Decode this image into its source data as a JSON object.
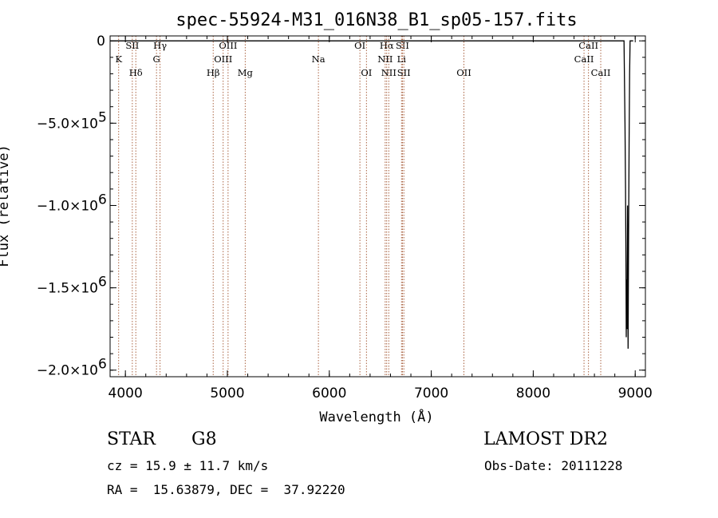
{
  "chart_data": {
    "type": "line",
    "title": "spec-55924-M31_016N38_B1_sp05-157.fits",
    "xlabel": "Wavelength (Å)",
    "ylabel": "Flux (relative)",
    "xlim": [
      3850,
      9100
    ],
    "ylim": [
      -2040000,
      30000
    ],
    "x_ticks": [
      4000,
      5000,
      6000,
      7000,
      8000,
      9000
    ],
    "x_tick_labels": [
      "4000",
      "5000",
      "6000",
      "7000",
      "8000",
      "9000"
    ],
    "y_ticks": [
      0,
      -500000,
      -1000000,
      -1500000,
      -2000000
    ],
    "y_tick_labels": [
      {
        "mantissa": "0",
        "exp": ""
      },
      {
        "mantissa": "−5.0×10",
        "exp": "5"
      },
      {
        "mantissa": "−1.0×10",
        "exp": "6"
      },
      {
        "mantissa": "−1.5×10",
        "exp": "6"
      },
      {
        "mantissa": "−2.0×10",
        "exp": "6"
      }
    ],
    "series": [
      {
        "x": [
          3850,
          8880,
          8890,
          8900,
          8905,
          8910,
          8912,
          8915,
          8920,
          8925,
          8930,
          8935,
          8940,
          8945,
          8950,
          8955,
          8960,
          8970,
          8980
        ],
        "y": [
          0,
          0,
          0,
          -500000,
          -900000,
          -1400000,
          -1800000,
          -1450000,
          -1750000,
          -1000000,
          -1870000,
          -1200000,
          -600000,
          -200000,
          0,
          0,
          0,
          0,
          0
        ]
      }
    ],
    "spectral_lines": [
      {
        "name": "K",
        "x": 3934,
        "row": 2
      },
      {
        "name": "SII",
        "x": 4068,
        "row": 1
      },
      {
        "name": "Hδ",
        "x": 4102,
        "row": 3
      },
      {
        "name": "Hγ",
        "x": 4340,
        "row": 1
      },
      {
        "name": "G",
        "x": 4305,
        "row": 2
      },
      {
        "name": "Hβ",
        "x": 4861,
        "row": 3
      },
      {
        "name": "OIII",
        "x": 5007,
        "row": 1
      },
      {
        "name": "OIII",
        "x": 4959,
        "row": 2
      },
      {
        "name": "Mg",
        "x": 5175,
        "row": 3
      },
      {
        "name": "Na",
        "x": 5893,
        "row": 2
      },
      {
        "name": "OI",
        "x": 6300,
        "row": 1
      },
      {
        "name": "OI",
        "x": 6364,
        "row": 3
      },
      {
        "name": "Hα",
        "x": 6563,
        "row": 1
      },
      {
        "name": "NII",
        "x": 6548,
        "row": 2
      },
      {
        "name": "NII",
        "x": 6583,
        "row": 3
      },
      {
        "name": "SII",
        "x": 6717,
        "row": 1
      },
      {
        "name": "Li",
        "x": 6708,
        "row": 2
      },
      {
        "name": "SII",
        "x": 6731,
        "row": 3
      },
      {
        "name": "OII",
        "x": 7320,
        "row": 3
      },
      {
        "name": "CaII",
        "x": 8542,
        "row": 1
      },
      {
        "name": "CaII",
        "x": 8498,
        "row": 2
      },
      {
        "name": "CaII",
        "x": 8662,
        "row": 3
      }
    ],
    "grid": false,
    "line_color": "#000000",
    "marker_color": "#a0522d"
  },
  "info": {
    "class": "STAR",
    "subclass": "G8",
    "survey": "LAMOST DR2",
    "cz": "cz = 15.9 ± 11.7 km/s",
    "obs_date": "Obs-Date: 20111228",
    "radec": "RA =  15.63879, DEC =  37.92220"
  }
}
